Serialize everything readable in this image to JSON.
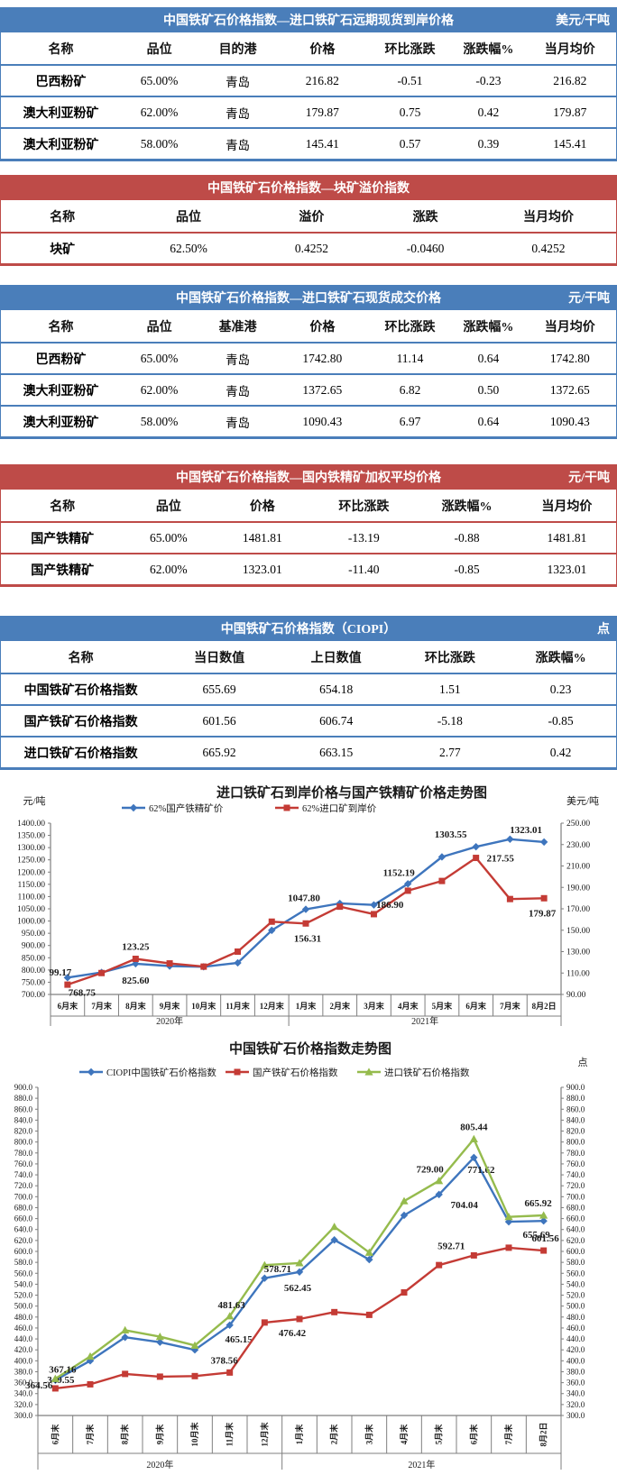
{
  "colors": {
    "table_blue": "#4a7eba",
    "table_red": "#be4b48",
    "line_blue": "#3e75bd",
    "line_red": "#c43b35",
    "line_green": "#95bb4d",
    "label_blue": "#0c76c9",
    "label_red": "#e23a2c",
    "label_green": "#10af4e"
  },
  "tables": [
    {
      "theme": "blue",
      "title": "中国铁矿石价格指数—进口铁矿石远期现货到岸价格",
      "unit": "美元/干吨",
      "columns": [
        "名称",
        "品位",
        "目的港",
        "价格",
        "环比涨跌",
        "涨跌幅%",
        "当月均价"
      ],
      "rows": [
        [
          "巴西粉矿",
          "65.00%",
          "青岛",
          "216.82",
          "-0.51",
          "-0.23",
          "216.82"
        ],
        [
          "澳大利亚粉矿",
          "62.00%",
          "青岛",
          "179.87",
          "0.75",
          "0.42",
          "179.87"
        ],
        [
          "澳大利亚粉矿",
          "58.00%",
          "青岛",
          "145.41",
          "0.57",
          "0.39",
          "145.41"
        ]
      ]
    },
    {
      "theme": "red",
      "title": "中国铁矿石价格指数—块矿溢价指数",
      "unit": "",
      "columns": [
        "名称",
        "品位",
        "溢价",
        "涨跌",
        "当月均价"
      ],
      "rows": [
        [
          "块矿",
          "62.50%",
          "0.4252",
          "-0.0460",
          "0.4252"
        ]
      ]
    },
    {
      "theme": "blue",
      "title": "中国铁矿石价格指数—进口铁矿石现货成交价格",
      "unit": "元/干吨",
      "columns": [
        "名称",
        "品位",
        "基准港",
        "价格",
        "环比涨跌",
        "涨跌幅%",
        "当月均价"
      ],
      "rows": [
        [
          "巴西粉矿",
          "65.00%",
          "青岛",
          "1742.80",
          "11.14",
          "0.64",
          "1742.80"
        ],
        [
          "澳大利亚粉矿",
          "62.00%",
          "青岛",
          "1372.65",
          "6.82",
          "0.50",
          "1372.65"
        ],
        [
          "澳大利亚粉矿",
          "58.00%",
          "青岛",
          "1090.43",
          "6.97",
          "0.64",
          "1090.43"
        ]
      ]
    },
    {
      "theme": "red",
      "title": "中国铁矿石价格指数—国内铁精矿加权平均价格",
      "unit": "元/干吨",
      "columns": [
        "名称",
        "品位",
        "价格",
        "环比涨跌",
        "涨跌幅%",
        "当月均价"
      ],
      "rows": [
        [
          "国产铁精矿",
          "65.00%",
          "1481.81",
          "-13.19",
          "-0.88",
          "1481.81"
        ],
        [
          "国产铁精矿",
          "62.00%",
          "1323.01",
          "-11.40",
          "-0.85",
          "1323.01"
        ]
      ]
    },
    {
      "theme": "blue",
      "title": "中国铁矿石价格指数（CIOPI）",
      "unit": "点",
      "columns": [
        "名称",
        "当日数值",
        "上日数值",
        "环比涨跌",
        "涨跌幅%"
      ],
      "rows": [
        [
          "中国铁矿石价格指数",
          "655.69",
          "654.18",
          "1.51",
          "0.23"
        ],
        [
          "国产铁矿石价格指数",
          "601.56",
          "606.74",
          "-5.18",
          "-0.85"
        ],
        [
          "进口铁矿石价格指数",
          "665.92",
          "663.15",
          "2.77",
          "0.42"
        ]
      ]
    }
  ],
  "chart_data": [
    {
      "type": "line",
      "title": "进口铁矿石到岸价格与国产铁精矿价格走势图",
      "categories": [
        "6月末",
        "7月末",
        "8月末",
        "9月末",
        "10月末",
        "11月末",
        "12月末",
        "1月末",
        "2月末",
        "3月末",
        "4月末",
        "5月末",
        "6月末",
        "7月末",
        "8月2日"
      ],
      "year_groups": [
        {
          "label": "2020年",
          "span": 7
        },
        {
          "label": "2021年",
          "span": 8
        }
      ],
      "left_axis": {
        "label": "元/吨",
        "min": 700,
        "max": 1400,
        "step": 50,
        "decimals": 2
      },
      "right_axis": {
        "label": "美元/吨",
        "min": 90,
        "max": 250,
        "step": 20,
        "decimals": 2
      },
      "grid": false,
      "legend_position": "top",
      "series": [
        {
          "name": "62%国产铁精矿价",
          "color": "#3e75bd",
          "label_color": "#0c76c9",
          "marker": "diamond",
          "axis": "left",
          "values": [
            768.75,
            790,
            825.6,
            816,
            813,
            829,
            962,
            1047.8,
            1072,
            1066,
            1152.19,
            1262,
            1303.55,
            1334.41,
            1323.01
          ],
          "point_labels": [
            {
              "i": 0,
              "text": "768.75",
              "dx": 16,
              "dy": 20
            },
            {
              "i": 2,
              "text": "825.60",
              "dx": 0,
              "dy": 22
            },
            {
              "i": 7,
              "text": "1047.80",
              "dx": -2,
              "dy": -9
            },
            {
              "i": 10,
              "text": "1152.19",
              "dx": -10,
              "dy": -9
            },
            {
              "i": 12,
              "text": "1303.55",
              "dx": -28,
              "dy": -10
            },
            {
              "i": 14,
              "text": "1323.01",
              "dx": -20,
              "dy": -10
            }
          ]
        },
        {
          "name": "62%进口矿到岸价",
          "color": "#c43b35",
          "label_color": "#e23a2c",
          "marker": "square",
          "axis": "right",
          "values": [
            99.17,
            110,
            123.25,
            119,
            116,
            130,
            158,
            156.31,
            172,
            165,
            186.9,
            196,
            217.55,
            179.12,
            179.87
          ],
          "point_labels": [
            {
              "i": 0,
              "text": "99.17",
              "dx": -8,
              "dy": -10
            },
            {
              "i": 2,
              "text": "123.25",
              "dx": 0,
              "dy": -10
            },
            {
              "i": 7,
              "text": "156.31",
              "dx": 2,
              "dy": 20
            },
            {
              "i": 10,
              "text": "186.90",
              "dx": -20,
              "dy": 19
            },
            {
              "i": 12,
              "text": "217.55",
              "dx": 12,
              "dy": 4,
              "anchor": "start"
            },
            {
              "i": 14,
              "text": "179.87",
              "dx": -2,
              "dy": 20
            }
          ]
        }
      ]
    },
    {
      "type": "line",
      "title": "中国铁矿石价格指数走势图",
      "categories": [
        "6月末",
        "7月末",
        "8月末",
        "9月末",
        "10月末",
        "11月末",
        "12月末",
        "1月末",
        "2月末",
        "3月末",
        "4月末",
        "5月末",
        "6月末",
        "7月末",
        "8月2日"
      ],
      "year_groups": [
        {
          "label": "2020年",
          "span": 7
        },
        {
          "label": "2021年",
          "span": 8
        }
      ],
      "left_axis": {
        "label": "",
        "min": 300,
        "max": 900,
        "step": 20,
        "decimals": 1
      },
      "right_axis": {
        "label": "点",
        "min": 300,
        "max": 900,
        "step": 20,
        "decimals": 1
      },
      "grid": false,
      "legend_position": "top",
      "series": [
        {
          "name": "CIOPI中国铁矿石价格指数",
          "color": "#3e75bd",
          "label_color": "#0c76c9",
          "marker": "diamond",
          "axis": "left",
          "values": [
            364.56,
            400,
            443,
            434,
            420,
            465.15,
            551,
            562.45,
            621,
            585,
            666,
            704.04,
            771.62,
            654.18,
            655.69
          ],
          "point_labels": [
            {
              "i": 0,
              "text": "364.56",
              "dx": -3,
              "dy": 9,
              "anchor": "end"
            },
            {
              "i": 5,
              "text": "465.15",
              "dx": 10,
              "dy": 19
            },
            {
              "i": 7,
              "text": "562.45",
              "dx": -2,
              "dy": 21
            },
            {
              "i": 11,
              "text": "704.04",
              "dx": 13,
              "dy": 15,
              "anchor": "start"
            },
            {
              "i": 12,
              "text": "771.62",
              "dx": 8,
              "dy": 17
            },
            {
              "i": 14,
              "text": "655.69",
              "dx": -8,
              "dy": 19
            }
          ]
        },
        {
          "name": "国产铁矿石价格指数",
          "color": "#c43b35",
          "label_color": "#e23a2c",
          "marker": "square",
          "axis": "left",
          "values": [
            349.55,
            357,
            376,
            371,
            372,
            378.56,
            470,
            476.42,
            489,
            484,
            525,
            575,
            592.71,
            606.74,
            601.56
          ],
          "point_labels": [
            {
              "i": 0,
              "text": "349.55",
              "dx": 6,
              "dy": -6
            },
            {
              "i": 5,
              "text": "378.56",
              "dx": -6,
              "dy": -10
            },
            {
              "i": 7,
              "text": "476.42",
              "dx": -8,
              "dy": 19
            },
            {
              "i": 12,
              "text": "592.71",
              "dx": -10,
              "dy": -7,
              "anchor": "end"
            },
            {
              "i": 14,
              "text": "601.56",
              "dx": 2,
              "dy": -10
            }
          ]
        },
        {
          "name": "进口铁矿石价格指数",
          "color": "#95bb4d",
          "label_color": "#10af4e",
          "marker": "triangle",
          "axis": "left",
          "values": [
            367.16,
            408,
            456,
            444,
            428,
            481.63,
            575,
            578.71,
            645,
            598,
            692,
            729.0,
            805.44,
            663.15,
            665.92
          ],
          "point_labels": [
            {
              "i": 0,
              "text": "367.16",
              "dx": 8,
              "dy": -7
            },
            {
              "i": 5,
              "text": "481.63",
              "dx": 2,
              "dy": -9
            },
            {
              "i": 7,
              "text": "578.71",
              "dx": -9,
              "dy": 10,
              "anchor": "end"
            },
            {
              "i": 11,
              "text": "729.00",
              "dx": -10,
              "dy": -9
            },
            {
              "i": 12,
              "text": "805.44",
              "dx": 0,
              "dy": -10
            },
            {
              "i": 14,
              "text": "665.92",
              "dx": -6,
              "dy": -10
            }
          ]
        }
      ]
    }
  ]
}
